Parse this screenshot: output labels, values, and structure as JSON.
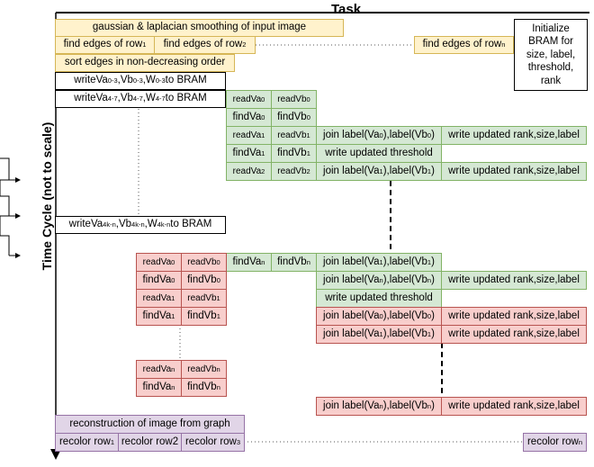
{
  "title": "Task",
  "y_axis_label": "Time Cycle (not to scale)",
  "init_box": "Initialize BRAM for size, label, threshold, rank",
  "labels": {
    "gaussian": "gaussian & laplacian smoothing of input image",
    "sort_edges": "sort edges in non-decreasing order",
    "write_updated_threshold": "write updated threshold",
    "write_updated_rsl": "write updated rank,size,label",
    "reconstruction": "reconstruction of image from graph",
    "find_edges_of_row": "find edges of row",
    "write": "write ",
    "to_bram": " to BRAM",
    "read": "read ",
    "find": "find ",
    "join_label": "join label",
    "recolor": "recolor row",
    "va": "Va",
    "vb": "Vb",
    "w": "W"
  },
  "subscripts": {
    "one": "1",
    "two": "2",
    "three": "3",
    "n": "n",
    "zero": "0",
    "r03": "0-3",
    "r47": "4-7",
    "r4kn": "4k-n"
  }
}
